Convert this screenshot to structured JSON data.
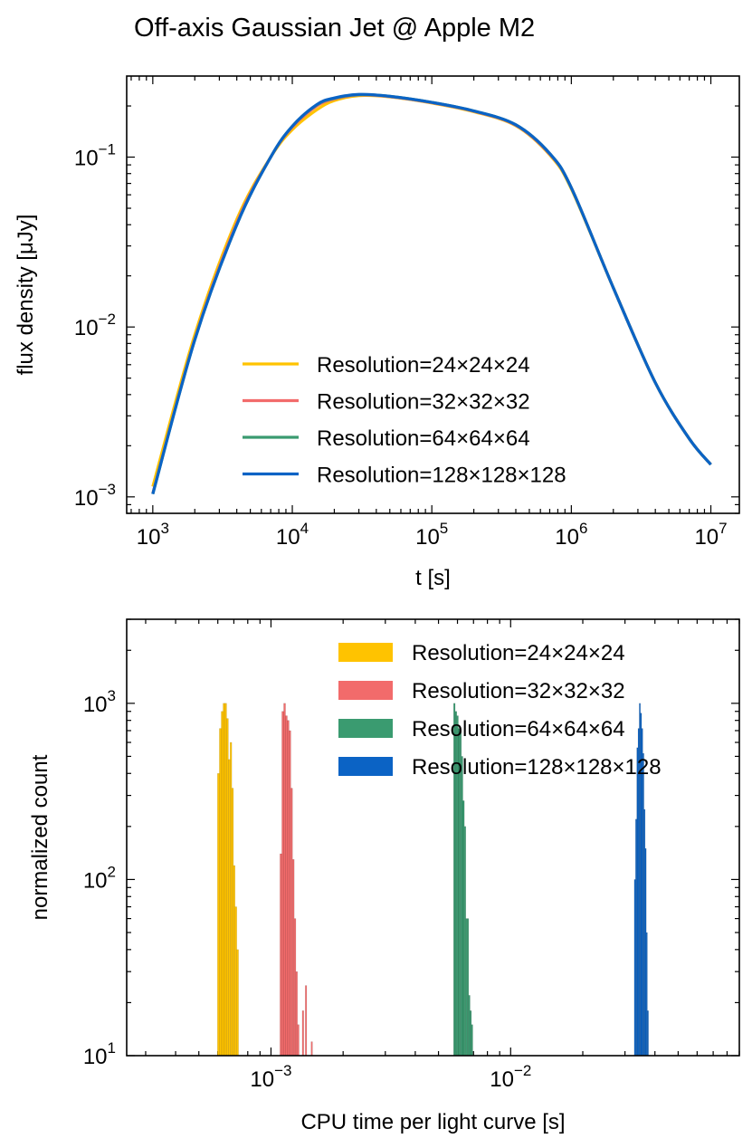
{
  "figure": {
    "title": "Off-axis Gaussian Jet @ Apple M2"
  },
  "chart_data": [
    {
      "type": "line",
      "xlabel": "t [s]",
      "ylabel": "flux density [μJy]",
      "xscale": "log",
      "yscale": "log",
      "xlim": [
        650,
        16000000
      ],
      "ylim": [
        0.0008,
        0.3
      ],
      "x_ticks": [
        {
          "value": 1000,
          "base": "10",
          "exp": "3"
        },
        {
          "value": 10000,
          "base": "10",
          "exp": "4"
        },
        {
          "value": 100000,
          "base": "10",
          "exp": "5"
        },
        {
          "value": 1000000,
          "base": "10",
          "exp": "6"
        },
        {
          "value": 10000000,
          "base": "10",
          "exp": "7"
        }
      ],
      "y_ticks": [
        {
          "value": 0.001,
          "base": "10",
          "exp": "−3"
        },
        {
          "value": 0.01,
          "base": "10",
          "exp": "−2"
        },
        {
          "value": 0.1,
          "base": "10",
          "exp": "−1"
        }
      ],
      "legend_position": "lower-center",
      "grid": false,
      "series": [
        {
          "name": "Resolution=24×24×24",
          "color": "#ffc300",
          "x": [
            1000,
            2000,
            4000,
            7000,
            10000,
            15000,
            20000,
            30000,
            50000,
            100000,
            200000,
            400000,
            700000,
            1000000,
            2000000,
            4000000,
            7000000,
            10000000
          ],
          "y": [
            0.00115,
            0.009,
            0.043,
            0.1,
            0.145,
            0.19,
            0.215,
            0.23,
            0.226,
            0.208,
            0.185,
            0.153,
            0.103,
            0.065,
            0.017,
            0.0047,
            0.0022,
            0.00155
          ]
        },
        {
          "name": "Resolution=32×32×32",
          "color": "#f26b6b",
          "x": [
            1000,
            2000,
            4000,
            7000,
            10000,
            15000,
            20000,
            30000,
            50000,
            100000,
            200000,
            400000,
            700000,
            1000000,
            2000000,
            4000000,
            7000000,
            10000000
          ],
          "y": [
            0.00105,
            0.0085,
            0.041,
            0.1,
            0.15,
            0.2,
            0.22,
            0.232,
            0.227,
            0.209,
            0.186,
            0.154,
            0.104,
            0.066,
            0.017,
            0.0047,
            0.0022,
            0.00155
          ]
        },
        {
          "name": "Resolution=64×64×64",
          "color": "#3a9b70",
          "x": [
            1000,
            2000,
            4000,
            7000,
            10000,
            15000,
            20000,
            30000,
            50000,
            100000,
            200000,
            400000,
            700000,
            1000000,
            2000000,
            4000000,
            7000000,
            10000000
          ],
          "y": [
            0.00104,
            0.0084,
            0.04,
            0.1,
            0.152,
            0.203,
            0.222,
            0.233,
            0.228,
            0.21,
            0.187,
            0.155,
            0.105,
            0.066,
            0.017,
            0.0047,
            0.0022,
            0.00155
          ]
        },
        {
          "name": "Resolution=128×128×128",
          "color": "#0b63c5",
          "x": [
            1000,
            2000,
            4000,
            7000,
            10000,
            15000,
            20000,
            30000,
            50000,
            100000,
            200000,
            400000,
            700000,
            1000000,
            2000000,
            4000000,
            7000000,
            10000000
          ],
          "y": [
            0.00104,
            0.0084,
            0.04,
            0.1,
            0.152,
            0.204,
            0.223,
            0.234,
            0.228,
            0.21,
            0.187,
            0.155,
            0.105,
            0.066,
            0.017,
            0.0047,
            0.0022,
            0.00155
          ]
        }
      ]
    },
    {
      "type": "bar",
      "subtype": "histogram",
      "xlabel": "CPU time per light curve [s]",
      "ylabel": "normalized count",
      "xscale": "log",
      "yscale": "log",
      "xlim": [
        0.00025,
        0.09
      ],
      "ylim": [
        10,
        3000
      ],
      "x_ticks": [
        {
          "value": 0.001,
          "base": "10",
          "exp": "−3"
        },
        {
          "value": 0.01,
          "base": "10",
          "exp": "−2"
        }
      ],
      "y_ticks": [
        {
          "value": 10,
          "base": "10",
          "exp": "1"
        },
        {
          "value": 100,
          "base": "10",
          "exp": "2"
        },
        {
          "value": 1000,
          "base": "10",
          "exp": "3"
        }
      ],
      "legend_position": "top-right",
      "grid": false,
      "series": [
        {
          "name": "Resolution=24×24×24",
          "color": "#ffc300",
          "bin_edges": [
            0.000598,
            0.000609,
            0.00062,
            0.000631,
            0.000642,
            0.000653,
            0.000664,
            0.000675,
            0.000686,
            0.000697,
            0.000708,
            0.00072,
            0.000732
          ],
          "counts": [
            400,
            720,
            900,
            1000,
            1000,
            820,
            480,
            600,
            330,
            120,
            70,
            40
          ]
        },
        {
          "name": "Resolution=32×32×32",
          "color": "#f26b6b",
          "bin_edges": [
            0.00109,
            0.00111,
            0.00113,
            0.00115,
            0.00117,
            0.00119,
            0.00121,
            0.00123,
            0.00125,
            0.00127,
            0.00129,
            0.00131,
            0.00133,
            0.00135,
            0.00137,
            0.00139,
            0.00141,
            0.00143,
            0.00145,
            0.00147,
            0.00149
          ],
          "counts": [
            140,
            900,
            1000,
            850,
            800,
            700,
            330,
            130,
            60,
            30,
            15,
            0,
            0,
            18,
            0,
            25,
            0,
            0,
            0,
            12
          ]
        },
        {
          "name": "Resolution=64×64×64",
          "color": "#3a9b70",
          "bin_edges": [
            0.00578,
            0.00587,
            0.00596,
            0.00605,
            0.00614,
            0.00623,
            0.00632,
            0.00641,
            0.0065,
            0.00659,
            0.00668,
            0.00677,
            0.00686,
            0.00695
          ],
          "counts": [
            1000,
            900,
            850,
            720,
            700,
            500,
            280,
            200,
            60,
            60,
            22,
            18,
            15
          ]
        },
        {
          "name": "Resolution=128×128×128",
          "color": "#0b63c5",
          "bin_edges": [
            0.0328,
            0.0332,
            0.0336,
            0.034,
            0.0344,
            0.0348,
            0.0352,
            0.0356,
            0.036,
            0.0364,
            0.0368,
            0.0372,
            0.0376
          ],
          "counts": [
            100,
            220,
            560,
            720,
            1000,
            880,
            720,
            520,
            250,
            150,
            50,
            18
          ]
        }
      ]
    }
  ]
}
